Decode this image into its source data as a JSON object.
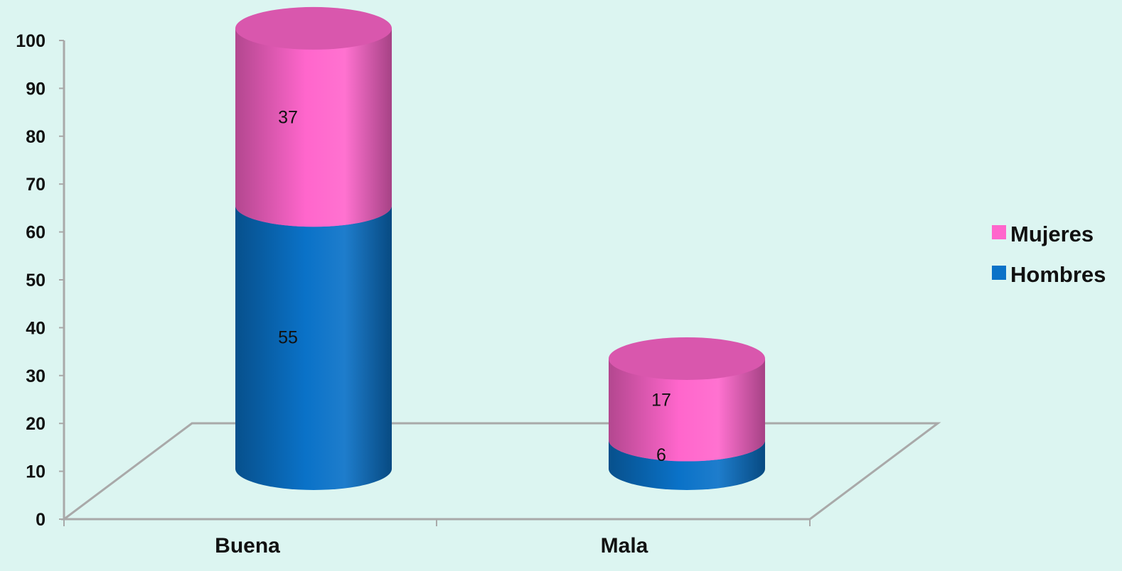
{
  "chart_data": {
    "type": "bar",
    "stacked": true,
    "style": "3d-cylinder",
    "categories": [
      "Buena",
      "Mala"
    ],
    "series": [
      {
        "name": "Hombres",
        "values": [
          55,
          6
        ],
        "color": "#0a72c8"
      },
      {
        "name": "Mujeres",
        "values": [
          37,
          17
        ],
        "color": "#ff66cc"
      }
    ],
    "yticks": [
      0,
      10,
      20,
      30,
      40,
      50,
      60,
      70,
      80,
      90,
      100
    ],
    "ylim": [
      0,
      100
    ],
    "title": "",
    "xlabel": "",
    "ylabel": "",
    "legend": {
      "position": "right",
      "order": [
        "Mujeres",
        "Hombres"
      ]
    },
    "grid": false,
    "colors": {
      "background": "#dcf5f1",
      "axis": "#a9a9a9",
      "text": "#111111"
    }
  }
}
